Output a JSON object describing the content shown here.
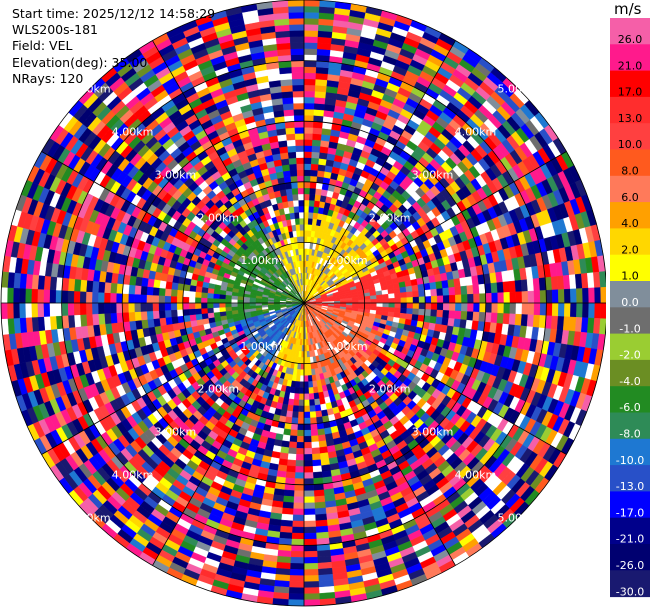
{
  "info": {
    "start_time": "Start time: 2025/12/12 14:58:29",
    "site": "WLS200s-181",
    "field": "Field: VEL",
    "elevation": "Elevation(deg): 35.00",
    "nrays": "NRays: 120"
  },
  "colorbar": {
    "unit": "m/s",
    "ticks": [
      "26.0",
      "21.0",
      "17.0",
      "13.0",
      "10.0",
      "8.0",
      "6.0",
      "4.0",
      "2.0",
      "1.0",
      "0.0",
      "-1.0",
      "-2.0",
      "-4.0",
      "-6.0",
      "-8.0",
      "-10.0",
      "-13.0",
      "-17.0",
      "-21.0",
      "-26.0",
      "-30.0"
    ],
    "colors": [
      "#f55fa8",
      "#ff1a8c",
      "#ff0000",
      "#ff2d2d",
      "#ff4040",
      "#ff5a1e",
      "#ff7a5a",
      "#ffa000",
      "#ffd700",
      "#ffff00",
      "#808e9b",
      "#6e6e6e",
      "#9acd32",
      "#6b8e23",
      "#228b22",
      "#2e8b57",
      "#1e78d2",
      "#2850c8",
      "#0000ff",
      "#00008b",
      "#000070",
      "#191970"
    ]
  },
  "chart_data": {
    "type": "heatmap",
    "subtype": "ppi-polar",
    "field": "VEL",
    "units": "m/s",
    "nrays": 120,
    "range_rings_km": [
      1.0,
      2.0,
      3.0,
      4.0,
      5.0
    ],
    "ring_labels": [
      "1.00km",
      "2.00km",
      "3.00km",
      "4.00km",
      "5.00km"
    ],
    "vmin": -30.0,
    "vmax": 26.0,
    "patterns": [
      {
        "azimuth_from": 0,
        "azimuth_to": 65,
        "range_to_km": 1.5,
        "velocity": 3.0
      },
      {
        "azimuth_from": 65,
        "azimuth_to": 98,
        "range_to_km": 1.6,
        "velocity": 14.0
      },
      {
        "azimuth_from": 98,
        "azimuth_to": 175,
        "range_to_km": 1.4,
        "velocity": 8.0
      },
      {
        "azimuth_from": 175,
        "azimuth_to": 210,
        "range_to_km": 1.2,
        "velocity": 3.0
      },
      {
        "azimuth_from": 210,
        "azimuth_to": 255,
        "range_to_km": 1.2,
        "velocity": -10.0
      },
      {
        "azimuth_from": 255,
        "azimuth_to": 330,
        "range_to_km": 1.5,
        "velocity": -5.0
      },
      {
        "azimuth_from": 330,
        "azimuth_to": 360,
        "range_to_km": 1.2,
        "velocity": 2.0
      }
    ],
    "outer_region": "random noise beyond ~1.5-2.0 km"
  }
}
